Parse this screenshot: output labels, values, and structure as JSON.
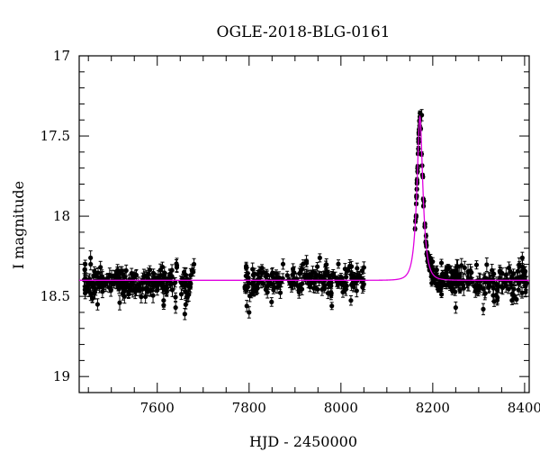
{
  "chart_data": {
    "type": "scatter",
    "title": "OGLE-2018-BLG-0161",
    "xlabel": "HJD - 2450000",
    "ylabel": "I magnitude",
    "xlim": [
      7430,
      8410
    ],
    "ylim": [
      17.0,
      19.1
    ],
    "y_inverted": true,
    "x_ticks": [
      7600,
      7800,
      8000,
      8200,
      8400
    ],
    "y_ticks": [
      17,
      17.5,
      18,
      18.5,
      19
    ],
    "x_tick_labels": [
      "7600",
      "7800",
      "8000",
      "8200",
      "8400"
    ],
    "y_tick_labels": [
      "17",
      "17.5",
      "18",
      "18.5",
      "19"
    ],
    "grid": false,
    "series": [
      {
        "kind": "data-with-errorbars",
        "color": "#000000",
        "segments": [
          {
            "x_range": [
              7440,
              7680
            ],
            "n": 240,
            "baseline": 18.41,
            "scatter": 0.07,
            "err": 0.035
          },
          {
            "x_range": [
              7790,
              8050
            ],
            "n": 200,
            "baseline": 18.4,
            "scatter": 0.06,
            "err": 0.03
          },
          {
            "x_range": [
              8160,
              8195
            ],
            "n": 60,
            "baseline": 18.4,
            "scatter": 0.02,
            "err": 0.012,
            "follows_model": true
          },
          {
            "x_range": [
              8195,
              8260
            ],
            "n": 80,
            "baseline": 18.4,
            "scatter": 0.04,
            "err": 0.02,
            "follows_model": true
          },
          {
            "x_range": [
              8240,
              8405
            ],
            "n": 130,
            "baseline": 18.4,
            "scatter": 0.07,
            "err": 0.035
          }
        ],
        "notable_points": [
          {
            "x": 7443,
            "y": 18.48
          },
          {
            "x": 7455,
            "y": 18.3
          },
          {
            "x": 7470,
            "y": 18.55
          },
          {
            "x": 7640,
            "y": 18.57
          },
          {
            "x": 7660,
            "y": 18.61
          },
          {
            "x": 7680,
            "y": 18.3
          },
          {
            "x": 7795,
            "y": 18.56
          },
          {
            "x": 7800,
            "y": 18.6
          },
          {
            "x": 7925,
            "y": 18.28
          },
          {
            "x": 8050,
            "y": 18.32
          },
          {
            "x": 8172,
            "y": 17.38
          },
          {
            "x": 8176,
            "y": 17.37
          },
          {
            "x": 8250,
            "y": 18.57
          },
          {
            "x": 8310,
            "y": 18.58
          },
          {
            "x": 8395,
            "y": 18.26
          }
        ]
      },
      {
        "kind": "model-curve",
        "color": "#e000e0",
        "model": "paczynski",
        "baseline_mag": 18.4,
        "peak_time": 8172,
        "peak_mag": 17.38,
        "t_E": 12
      }
    ]
  }
}
